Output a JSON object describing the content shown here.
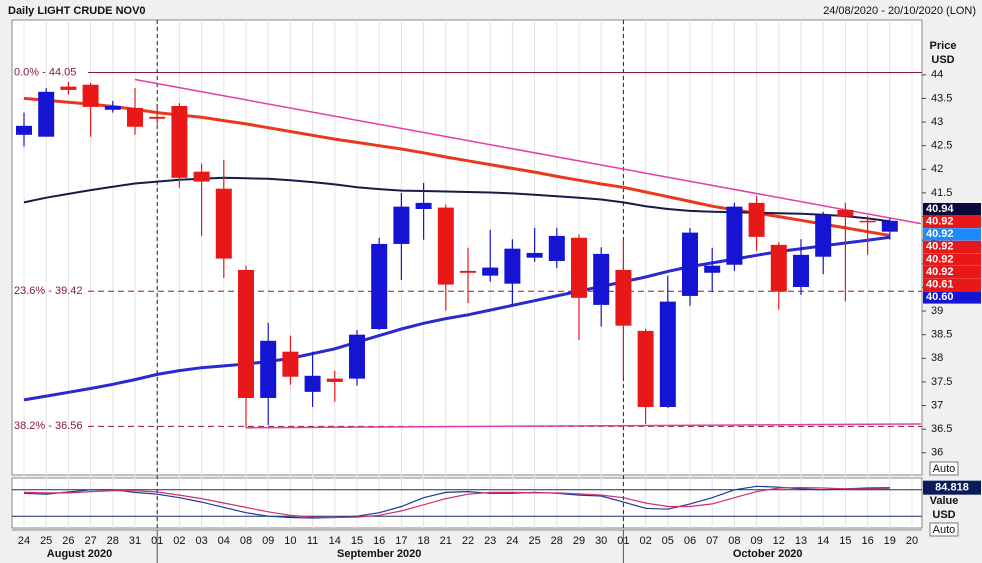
{
  "chart_data": [
    {
      "type": "candlestick",
      "title": "Daily LIGHT CRUDE NOV0",
      "subtitle": "24/08/2020 - 20/10/2020 (LON)",
      "ylabel": "Price",
      "yunit": "USD",
      "auto_button": "Auto",
      "categories": [
        "24",
        "25",
        "26",
        "27",
        "28",
        "31",
        "01",
        "02",
        "03",
        "04",
        "08",
        "09",
        "10",
        "11",
        "14",
        "15",
        "16",
        "17",
        "18",
        "21",
        "22",
        "23",
        "24",
        "25",
        "28",
        "29",
        "30",
        "01",
        "02",
        "05",
        "06",
        "07",
        "08",
        "09",
        "12",
        "13",
        "14",
        "15",
        "16",
        "19",
        "20"
      ],
      "month_labels": [
        "August 2020",
        "September 2020",
        "October 2020"
      ],
      "month_starts": [
        0,
        6,
        27
      ],
      "open": [
        42.73,
        42.69,
        43.75,
        43.79,
        43.26,
        43.3,
        43.11,
        43.34,
        41.95,
        41.59,
        39.87,
        37.16,
        38.14,
        37.29,
        37.57,
        37.57,
        38.62,
        40.42,
        41.16,
        41.19,
        39.85,
        39.75,
        39.58,
        40.13,
        40.06,
        40.55,
        39.13,
        39.87,
        38.58,
        36.97,
        39.32,
        39.81,
        39.98,
        41.29,
        40.4,
        39.51,
        40.15,
        41.14,
        40.91,
        40.68,
        null
      ],
      "high": [
        43.2,
        43.72,
        43.85,
        43.83,
        43.45,
        43.72,
        43.35,
        43.4,
        42.12,
        42.2,
        39.96,
        38.75,
        38.48,
        38.14,
        37.74,
        38.6,
        40.55,
        41.5,
        41.71,
        41.25,
        40.34,
        40.72,
        40.52,
        40.76,
        40.76,
        40.62,
        40.35,
        40.51,
        38.62,
        39.75,
        40.76,
        40.34,
        41.29,
        41.44,
        40.46,
        40.52,
        41.1,
        41.29,
        41.02,
        40.96,
        null
      ],
      "low": [
        42.48,
        42.69,
        43.58,
        42.69,
        43.2,
        42.73,
        42.95,
        41.61,
        40.59,
        39.7,
        36.53,
        36.59,
        37.44,
        36.97,
        37.08,
        37.42,
        38.6,
        39.66,
        40.51,
        39.01,
        39.17,
        39.62,
        39.11,
        40.04,
        39.91,
        38.39,
        38.67,
        37.59,
        36.61,
        36.95,
        39.11,
        39.4,
        39.85,
        40.27,
        39.03,
        39.34,
        39.78,
        39.2,
        40.19,
        40.51,
        null
      ],
      "close": [
        42.92,
        43.64,
        43.68,
        43.32,
        43.34,
        42.9,
        43.07,
        41.82,
        41.74,
        40.11,
        37.16,
        38.37,
        37.61,
        37.63,
        37.5,
        38.5,
        40.42,
        41.21,
        41.29,
        39.56,
        39.81,
        39.92,
        40.32,
        40.23,
        40.59,
        39.28,
        40.21,
        38.69,
        36.97,
        39.2,
        40.66,
        39.96,
        41.21,
        40.57,
        39.41,
        40.19,
        41.04,
        41.0,
        40.89,
        40.91,
        null
      ],
      "up_color": "#1414d2",
      "down_color": "#e81818",
      "series": [
        {
          "color": "#e8391d",
          "width": 3,
          "values": [
            43.5,
            43.46,
            43.42,
            43.38,
            43.33,
            43.27,
            43.2,
            43.15,
            43.1,
            43.03,
            42.96,
            42.88,
            42.8,
            42.72,
            42.64,
            42.57,
            42.5,
            42.43,
            42.35,
            42.26,
            42.18,
            42.1,
            42.02,
            41.94,
            41.85,
            41.77,
            41.69,
            41.62,
            41.52,
            41.42,
            41.32,
            41.22,
            41.14,
            41.07,
            41.0,
            40.92,
            40.84,
            40.76,
            40.68,
            40.6,
            null
          ]
        },
        {
          "color": "#1a1a48",
          "width": 2,
          "values": [
            41.3,
            41.4,
            41.48,
            41.56,
            41.63,
            41.7,
            41.74,
            41.78,
            41.8,
            41.82,
            41.81,
            41.8,
            41.77,
            41.73,
            41.68,
            41.62,
            41.58,
            41.55,
            41.54,
            41.53,
            41.52,
            41.51,
            41.49,
            41.46,
            41.43,
            41.4,
            41.36,
            41.3,
            41.22,
            41.16,
            41.12,
            41.1,
            41.09,
            41.08,
            41.07,
            41.06,
            41.04,
            41.01,
            40.96,
            40.9,
            null
          ]
        },
        {
          "color": "#2a2ad0",
          "width": 3,
          "values": [
            37.12,
            37.2,
            37.28,
            37.36,
            37.45,
            37.55,
            37.66,
            37.74,
            37.8,
            37.84,
            37.88,
            37.93,
            38.0,
            38.1,
            38.2,
            38.34,
            38.48,
            38.62,
            38.74,
            38.84,
            38.92,
            39.02,
            39.12,
            39.22,
            39.32,
            39.42,
            39.52,
            39.62,
            39.72,
            39.84,
            39.94,
            40.02,
            40.1,
            40.18,
            40.26,
            40.32,
            40.38,
            40.44,
            40.5,
            40.56,
            null
          ]
        }
      ],
      "trendlines": [
        {
          "color": "#e040a0",
          "x": [
            5,
            40.4
          ],
          "y": [
            43.9,
            40.85
          ]
        },
        {
          "color": "#e040a0",
          "x": [
            10,
            40.4
          ],
          "y": [
            36.53,
            36.61
          ]
        }
      ],
      "fib_color": "#8b1a3a",
      "fib_levels": [
        {
          "label": "0.0% - 44.05",
          "value": 44.05,
          "dashed": false
        },
        {
          "label": "23.6% - 39.42",
          "value": 39.42,
          "dashed": true
        },
        {
          "label": "38.2% - 36.56",
          "value": 36.56,
          "dashed": true
        }
      ],
      "price_markers": {
        "values": [
          40.94,
          40.92,
          40.92,
          40.92,
          40.92,
          40.92,
          40.61,
          40.6
        ],
        "value_labels": [
          "40.94",
          "40.92",
          "40.92",
          "40.92",
          "40.92",
          "40.92",
          "40.61",
          "40.60"
        ],
        "colors": [
          "#0a0a3c",
          "#e81818",
          "#1e88ff",
          "#e81818",
          "#e81818",
          "#e81818",
          "#e81818",
          "#1414d2"
        ]
      },
      "ylim": [
        35.53,
        45.16
      ],
      "yticks": [
        36,
        36.5,
        37,
        37.5,
        38,
        38.5,
        39,
        39.5,
        40,
        40.5,
        41,
        41.5,
        42,
        42.5,
        43,
        43.5,
        44
      ]
    },
    {
      "type": "line",
      "value_label": "Value",
      "yunit": "USD",
      "auto_button": "Auto",
      "series": [
        {
          "color": "#1a3a9a",
          "values": [
            72,
            70,
            75,
            80,
            80,
            74,
            70,
            62,
            52,
            40,
            28,
            20,
            17,
            16,
            17,
            20,
            28,
            42,
            62,
            74,
            76,
            72,
            72,
            74,
            72,
            68,
            66,
            52,
            38,
            36,
            48,
            62,
            80,
            88,
            86,
            82,
            80,
            82,
            84,
            84.818,
            null
          ]
        },
        {
          "color": "#d0306a",
          "values": [
            74,
            73,
            73,
            76,
            78,
            78,
            75,
            68,
            60,
            50,
            40,
            30,
            22,
            18,
            17,
            18,
            22,
            32,
            46,
            60,
            70,
            74,
            74,
            73,
            73,
            71,
            68,
            62,
            50,
            42,
            42,
            48,
            62,
            76,
            84,
            85,
            84,
            82,
            82,
            82,
            null
          ]
        }
      ],
      "levels": [
        80,
        20
      ],
      "ylim": [
        0,
        100
      ]
    }
  ]
}
